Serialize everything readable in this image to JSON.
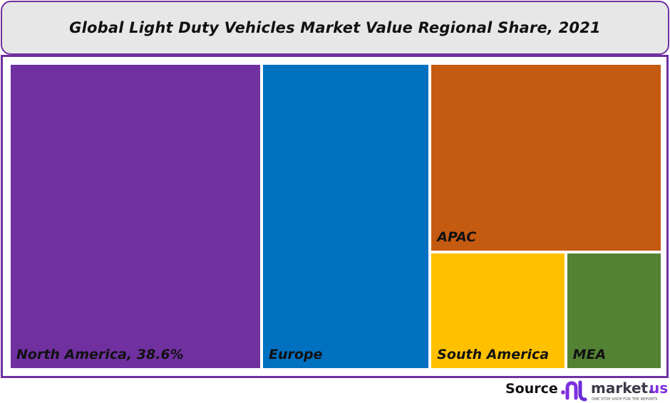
{
  "chart_data": {
    "type": "treemap",
    "title": "Global Light Duty Vehicles  Market Value Regional Share, 2021",
    "categories": [
      "North America",
      "Europe",
      "APAC",
      "South America",
      "MEA"
    ],
    "values": [
      38.6,
      25.9,
      21.9,
      8.0,
      5.6
    ],
    "labels": [
      "North America, 38.6%",
      "Europe",
      "APAC",
      "South America",
      "MEA"
    ],
    "colors": [
      "#7030a0",
      "#0070c0",
      "#c55a11",
      "#ffc000",
      "#548235"
    ],
    "unit": "%"
  },
  "footer": {
    "source_label": "Source",
    "logo_text": "market.us",
    "logo_tagline": "ONE STOP SHOP FOR THE REPORTS"
  }
}
